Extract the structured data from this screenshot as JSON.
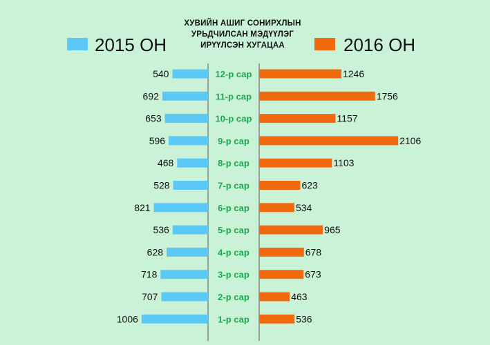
{
  "chart_data": {
    "type": "bar",
    "title_lines": [
      "ХУВИЙН АШИГ СОНИРХЛЫН",
      "УРЬДЧИЛСАН МЭДҮҮЛЭГ",
      "ИРҮҮЛСЭН ХУГАЦАА"
    ],
    "categories": [
      "12-р сар",
      "11-р сар",
      "10-р сар",
      "9-р сар",
      "8-р сар",
      "7-р сар",
      "6-р сар",
      "5-р сар",
      "4-р сар",
      "3-р сар",
      "2-р сар",
      "1-р сар"
    ],
    "series": [
      {
        "name": "2015 ОН",
        "color": "#5bc8f5",
        "values": [
          540,
          692,
          653,
          596,
          468,
          528,
          821,
          536,
          628,
          718,
          707,
          1006
        ]
      },
      {
        "name": "2016 ОН",
        "color": "#f06a0f",
        "values": [
          1246,
          1756,
          1157,
          2106,
          1103,
          623,
          534,
          965,
          678,
          673,
          463,
          536
        ]
      }
    ],
    "category_label_color": "#19a84a",
    "axis_line_color": "#888888",
    "legend_placement": "top",
    "grid": false
  }
}
